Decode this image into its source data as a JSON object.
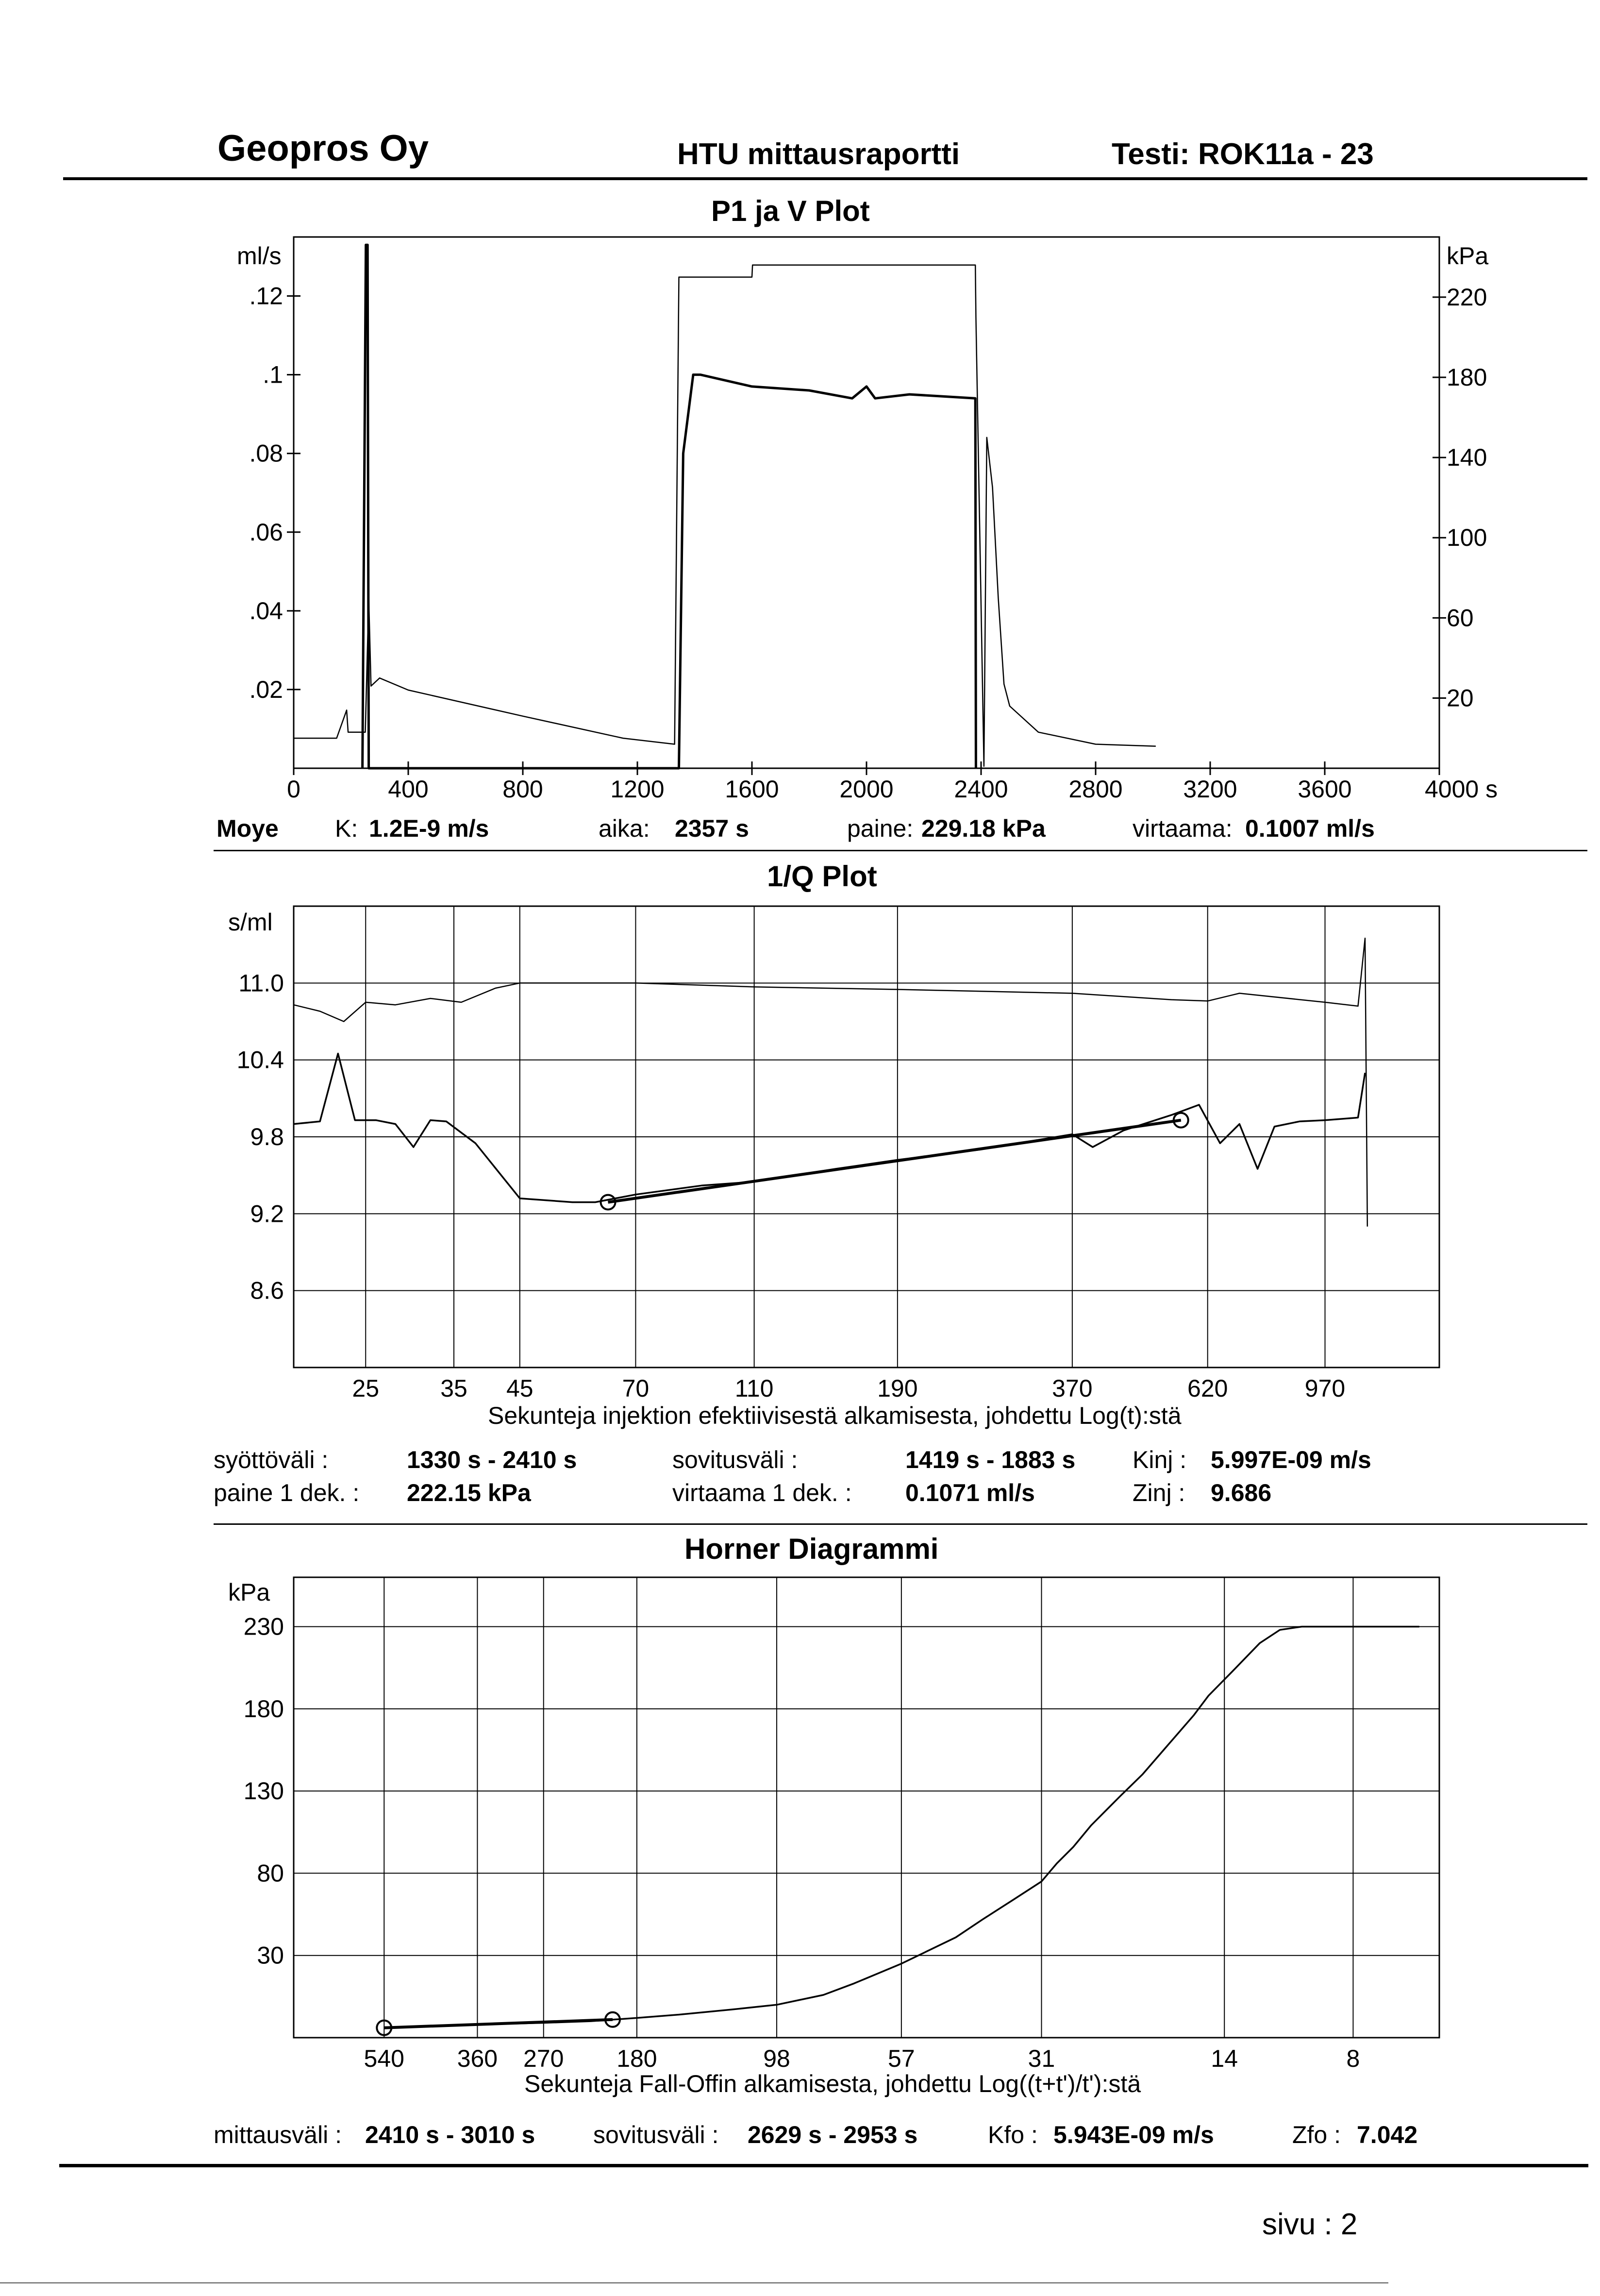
{
  "header": {
    "company": "Geopros Oy",
    "report": "HTU mittausraportti",
    "test": "Testi: ROK11a - 23"
  },
  "plot1": {
    "title": "P1 ja V Plot",
    "left_unit": "ml/s",
    "right_unit": "kPa",
    "left_ticks": [
      ".12",
      ".1",
      ".08",
      ".06",
      ".04",
      ".02"
    ],
    "right_ticks": [
      "220",
      "180",
      "140",
      "100",
      "60",
      "20"
    ],
    "x_ticks": [
      "0",
      "400",
      "800",
      "1200",
      "1600",
      "2000",
      "2400",
      "2800",
      "3200",
      "3600",
      "4000 s"
    ],
    "summary": {
      "method": "Moye",
      "k_label": "K:",
      "k_value": "1.2E-9 m/s",
      "aika_label": "aika:",
      "aika_value": "2357 s",
      "paine_label": "paine:",
      "paine_value": "229.18 kPa",
      "virtaama_label": "virtaama:",
      "virtaama_value": "0.1007 ml/s"
    }
  },
  "plot2": {
    "title": "1/Q Plot",
    "y_unit": "s/ml",
    "y_ticks": [
      "11.0",
      "10.4",
      "9.8",
      "9.2",
      "8.6"
    ],
    "x_ticks": [
      "25",
      "35",
      "45",
      "70",
      "110",
      "190",
      "370",
      "620",
      "970"
    ],
    "xlabel": "Sekunteja injektion efektiivisestä alkamisesta, johdettu Log(t):stä",
    "info": {
      "syotto_label": "syöttöväli :",
      "syotto_value": "1330 s -  2410 s",
      "sovitus_label": "sovitusväli :",
      "sovitus_value": "1419 s  -  1883 s",
      "kinj_label": "Kinj :",
      "kinj_value": "5.997E-09 m/s",
      "paine_label": "paine 1 dek. :",
      "paine_value": "222.15 kPa",
      "virtaama_label": "virtaama 1 dek. :",
      "virtaama_value": "0.1071 ml/s",
      "zinj_label": "Zinj :",
      "zinj_value": "9.686"
    }
  },
  "plot3": {
    "title": "Horner Diagrammi",
    "y_unit": "kPa",
    "y_ticks": [
      "230",
      "180",
      "130",
      "80",
      "30"
    ],
    "x_ticks": [
      "540",
      "360",
      "270",
      "180",
      "98",
      "57",
      "31",
      "14",
      "8"
    ],
    "xlabel": "Sekunteja Fall-Offin alkamisesta, johdettu Log((t+t')/t'):stä",
    "info": {
      "mittaus_label": "mittausväli :",
      "mittaus_value": "2410 s -  3010 s",
      "sovitus_label": "sovitusväli :",
      "sovitus_value": "2629 s -  2953 s",
      "kfo_label": "Kfo :",
      "kfo_value": "5.943E-09 m/s",
      "zfo_label": "Zfo :",
      "zfo_value": "7.042"
    }
  },
  "footer": {
    "page": "sivu :  2"
  },
  "chart_data": [
    {
      "type": "line",
      "title": "P1 ja V Plot",
      "xlabel": "",
      "xlim": [
        0,
        4000
      ],
      "y_left_label": "ml/s",
      "y_left_lim": [
        0,
        0.135
      ],
      "y_right_label": "kPa",
      "y_right_lim": [
        -15,
        250
      ],
      "grid": false,
      "series": [
        {
          "axis": "right",
          "style": "thin",
          "points": [
            [
              0,
              0
            ],
            [
              150,
              0
            ],
            [
              185,
              14
            ],
            [
              190,
              3
            ],
            [
              240,
              3
            ],
            [
              250,
              3
            ],
            [
              262,
              70
            ],
            [
              270,
              26
            ],
            [
              300,
              30
            ],
            [
              400,
              24
            ],
            [
              800,
              11
            ],
            [
              1150,
              0
            ],
            [
              1330,
              -3
            ],
            [
              1345,
              230
            ],
            [
              1600,
              230
            ],
            [
              1602,
              236
            ],
            [
              2380,
              236
            ],
            [
              2382,
              210
            ],
            [
              2410,
              -14
            ],
            [
              2420,
              150
            ],
            [
              2440,
              125
            ],
            [
              2460,
              70
            ],
            [
              2480,
              27
            ],
            [
              2500,
              16
            ],
            [
              2600,
              3
            ],
            [
              2800,
              -3
            ],
            [
              3010,
              -4
            ]
          ]
        },
        {
          "axis": "left",
          "style": "thick",
          "points": [
            [
              240,
              0
            ],
            [
              252,
              0.133
            ],
            [
              258,
              0.133
            ],
            [
              262,
              0
            ],
            [
              1345,
              0
            ],
            [
              1360,
              0.08
            ],
            [
              1395,
              0.1
            ],
            [
              1420,
              0.1
            ],
            [
              1600,
              0.097
            ],
            [
              1800,
              0.096
            ],
            [
              1950,
              0.094
            ],
            [
              2000,
              0.097
            ],
            [
              2030,
              0.094
            ],
            [
              2150,
              0.095
            ],
            [
              2380,
              0.094
            ],
            [
              2382,
              0
            ]
          ]
        }
      ]
    },
    {
      "type": "line",
      "title": "1/Q Plot",
      "xlabel": "Sekunteja injektion efektiivisestä alkamisesta, johdettu Log(t):stä",
      "ylabel": "s/ml",
      "x_scale": "log",
      "xlim": [
        19,
        1500
      ],
      "ylim": [
        8.0,
        11.6
      ],
      "grid": true,
      "series": [
        {
          "style": "thin",
          "points": [
            [
              19,
              10.83
            ],
            [
              21,
              10.78
            ],
            [
              23,
              10.7
            ],
            [
              25,
              10.85
            ],
            [
              28,
              10.83
            ],
            [
              32,
              10.88
            ],
            [
              36,
              10.85
            ],
            [
              41,
              10.96
            ],
            [
              45,
              11.0
            ],
            [
              70,
              11.0
            ],
            [
              110,
              10.97
            ],
            [
              190,
              10.95
            ],
            [
              370,
              10.92
            ],
            [
              540,
              10.87
            ],
            [
              620,
              10.86
            ],
            [
              700,
              10.92
            ],
            [
              970,
              10.85
            ],
            [
              1100,
              10.82
            ],
            [
              1130,
              11.35
            ],
            [
              1140,
              9.1
            ]
          ]
        },
        {
          "style": "medium",
          "points": [
            [
              19,
              9.9
            ],
            [
              21,
              9.92
            ],
            [
              22.5,
              10.45
            ],
            [
              24,
              9.93
            ],
            [
              26,
              9.93
            ],
            [
              28,
              9.9
            ],
            [
              30,
              9.72
            ],
            [
              32,
              9.93
            ],
            [
              34,
              9.92
            ],
            [
              38,
              9.75
            ],
            [
              45,
              9.32
            ],
            [
              55,
              9.29
            ],
            [
              60,
              9.29
            ],
            [
              70,
              9.35
            ],
            [
              90,
              9.42
            ],
            [
              110,
              9.45
            ],
            [
              150,
              9.55
            ],
            [
              190,
              9.62
            ],
            [
              260,
              9.7
            ],
            [
              370,
              9.82
            ],
            [
              400,
              9.72
            ],
            [
              450,
              9.85
            ],
            [
              540,
              9.97
            ],
            [
              600,
              10.05
            ],
            [
              650,
              9.75
            ],
            [
              700,
              9.9
            ],
            [
              750,
              9.55
            ],
            [
              800,
              9.88
            ],
            [
              880,
              9.92
            ],
            [
              970,
              9.93
            ],
            [
              1100,
              9.95
            ],
            [
              1130,
              10.3
            ]
          ]
        },
        {
          "style": "fit",
          "points": [
            [
              63,
              9.29
            ],
            [
              560,
              9.93
            ]
          ]
        }
      ],
      "fit_endpoints": [
        [
          63,
          9.29
        ],
        [
          560,
          9.93
        ]
      ]
    },
    {
      "type": "line",
      "title": "Horner Diagrammi",
      "xlabel": "Sekunteja Fall-Offin alkamisesta, johdettu Log((t+t')/t'):stä",
      "ylabel": "kPa",
      "x_scale": "log",
      "x_reversed": true,
      "xlim": [
        800,
        5.5
      ],
      "ylim": [
        -20,
        260
      ],
      "grid": true,
      "series": [
        {
          "style": "data",
          "points": [
            [
              540,
              -14
            ],
            [
              360,
              -12
            ],
            [
              270,
              -11
            ],
            [
              220,
              -10
            ],
            [
              180,
              -8
            ],
            [
              150,
              -6
            ],
            [
              120,
              -3
            ],
            [
              98,
              0
            ],
            [
              80,
              6
            ],
            [
              70,
              13
            ],
            [
              57,
              25
            ],
            [
              45,
              41
            ],
            [
              40,
              52
            ],
            [
              35,
              64
            ],
            [
              31,
              75
            ],
            [
              29,
              86
            ],
            [
              27,
              96
            ],
            [
              25,
              109
            ],
            [
              22,
              127
            ],
            [
              20,
              140
            ],
            [
              18,
              157
            ],
            [
              16,
              176
            ],
            [
              15,
              188
            ],
            [
              13.5,
              203
            ],
            [
              12,
              220
            ],
            [
              11,
              228
            ],
            [
              10,
              230
            ],
            [
              8,
              230
            ],
            [
              6,
              230
            ]
          ]
        },
        {
          "style": "fit",
          "points": [
            [
              540,
              -14
            ],
            [
              200,
              -9
            ]
          ]
        }
      ],
      "fit_endpoints": [
        [
          540,
          -14
        ],
        [
          200,
          -9
        ]
      ]
    }
  ]
}
